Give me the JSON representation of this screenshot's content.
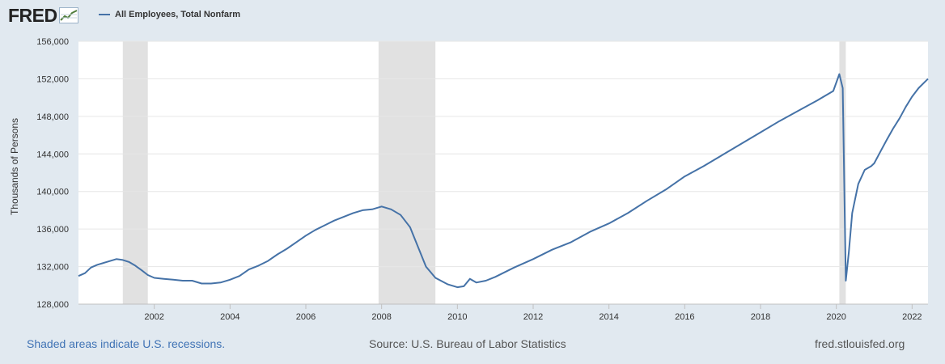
{
  "header": {
    "logo_text": "FRED",
    "logo_icon": "trend-line-icon",
    "legend_label": "All Employees, Total Nonfarm"
  },
  "footer": {
    "recession_note": "Shaded areas indicate U.S. recessions.",
    "source": "Source: U.S. Bureau of Labor Statistics",
    "site": "fred.stlouisfed.org"
  },
  "colors": {
    "series": "#4572a7",
    "recession_band": "#e1e1e1",
    "background": "#e1e9f0",
    "plot_bg": "#ffffff",
    "grid": "#e6e6e6"
  },
  "chart_data": {
    "type": "line",
    "title": "",
    "xlabel": "",
    "ylabel": "Thousands of Persons",
    "xlim": [
      2000.0,
      2022.42
    ],
    "ylim": [
      128000,
      156000
    ],
    "x_ticks": [
      2002,
      2004,
      2006,
      2008,
      2010,
      2012,
      2014,
      2016,
      2018,
      2020,
      2022
    ],
    "x_tick_labels": [
      "2002",
      "2004",
      "2006",
      "2008",
      "2010",
      "2012",
      "2014",
      "2016",
      "2018",
      "2020",
      "2022"
    ],
    "y_ticks": [
      128000,
      132000,
      136000,
      140000,
      144000,
      148000,
      152000,
      156000
    ],
    "y_tick_labels": [
      "128,000",
      "132,000",
      "136,000",
      "140,000",
      "144,000",
      "148,000",
      "152,000",
      "156,000"
    ],
    "grid": "horizontal",
    "legend_position": "top-left",
    "recessions": [
      {
        "start": 2001.17,
        "end": 2001.83
      },
      {
        "start": 2007.92,
        "end": 2009.42
      },
      {
        "start": 2020.08,
        "end": 2020.25
      }
    ],
    "series": [
      {
        "name": "All Employees, Total Nonfarm",
        "x": [
          2000.0,
          2000.17,
          2000.33,
          2000.5,
          2000.75,
          2001.0,
          2001.17,
          2001.33,
          2001.5,
          2001.67,
          2001.83,
          2002.0,
          2002.25,
          2002.5,
          2002.75,
          2003.0,
          2003.25,
          2003.5,
          2003.75,
          2004.0,
          2004.25,
          2004.5,
          2004.75,
          2005.0,
          2005.25,
          2005.5,
          2005.75,
          2006.0,
          2006.25,
          2006.5,
          2006.75,
          2007.0,
          2007.25,
          2007.5,
          2007.75,
          2008.0,
          2008.25,
          2008.5,
          2008.75,
          2008.92,
          2009.17,
          2009.42,
          2009.75,
          2010.0,
          2010.17,
          2010.33,
          2010.5,
          2010.75,
          2011.0,
          2011.5,
          2012.0,
          2012.5,
          2013.0,
          2013.5,
          2014.0,
          2014.5,
          2015.0,
          2015.5,
          2016.0,
          2016.5,
          2017.0,
          2017.5,
          2018.0,
          2018.5,
          2019.0,
          2019.5,
          2019.92,
          2020.08,
          2020.17,
          2020.25,
          2020.33,
          2020.42,
          2020.58,
          2020.75,
          2020.92,
          2021.0,
          2021.17,
          2021.33,
          2021.5,
          2021.67,
          2021.83,
          2022.0,
          2022.17,
          2022.42
        ],
        "values": [
          131000,
          131300,
          131900,
          132200,
          132500,
          132800,
          132700,
          132500,
          132100,
          131600,
          131100,
          130800,
          130700,
          130600,
          130500,
          130500,
          130200,
          130200,
          130300,
          130600,
          131000,
          131700,
          132100,
          132600,
          133300,
          133900,
          134600,
          135300,
          135900,
          136400,
          136900,
          137300,
          137700,
          138000,
          138100,
          138400,
          138100,
          137500,
          136200,
          134500,
          132000,
          130800,
          130100,
          129800,
          129900,
          130700,
          130300,
          130500,
          130900,
          131900,
          132800,
          133800,
          134600,
          135700,
          136600,
          137700,
          139000,
          140200,
          141600,
          142700,
          143900,
          145100,
          146300,
          147500,
          148600,
          149700,
          150700,
          152500,
          151000,
          130500,
          133500,
          137700,
          140800,
          142300,
          142700,
          143000,
          144300,
          145500,
          146700,
          147800,
          149000,
          150100,
          151000,
          152000
        ]
      }
    ]
  }
}
